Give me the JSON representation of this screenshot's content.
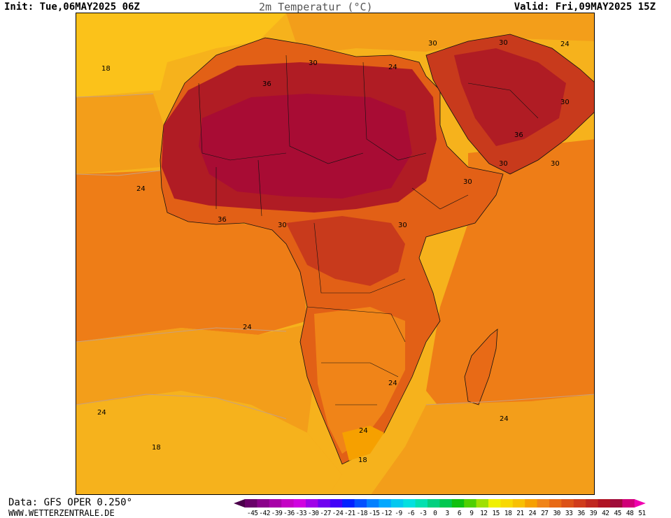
{
  "header": {
    "init": "Init: Tue,06MAY2025 06Z",
    "title": "2m Temperatur (°C)",
    "valid": "Valid: Fri,09MAY2025 15Z"
  },
  "footer": {
    "data_source": "Data: GFS OPER 0.250°",
    "website": "WWW.WETTERZENTRALE.DE"
  },
  "map": {
    "region": "Africa",
    "colors": {
      "ocean_cool": "#f6b21c",
      "ocean_18": "#fbc21a",
      "ocean_mid": "#f39e1a",
      "ocean_warm": "#ee7d17",
      "land_warm": "#e26016",
      "land_hot": "#c83a1c",
      "land_hotter": "#b01c24",
      "land_extreme": "#a80c34",
      "border_line": "#111111",
      "contour_line": "#c8a080"
    },
    "contour_labels": [
      {
        "text": "18",
        "id": "label-18-nw"
      },
      {
        "text": "36",
        "id": "label-36-sahara"
      },
      {
        "text": "30",
        "id": "label-30-mediterranean"
      },
      {
        "text": "24",
        "id": "label-24-libya"
      },
      {
        "text": "30",
        "id": "label-30-egypt"
      },
      {
        "text": "30",
        "id": "label-30-middle-east"
      },
      {
        "text": "24",
        "id": "label-24-ne-corner"
      },
      {
        "text": "30",
        "id": "label-30-arabia"
      },
      {
        "text": "36",
        "id": "label-36-arabia"
      },
      {
        "text": "30",
        "id": "label-30-horn"
      },
      {
        "text": "30",
        "id": "label-30-arabian-sea"
      },
      {
        "text": "30",
        "id": "label-30-ethiopia"
      },
      {
        "text": "24",
        "id": "label-24-atlantic-west"
      },
      {
        "text": "36",
        "id": "label-36-west-africa"
      },
      {
        "text": "30",
        "id": "label-30-gulf-guinea"
      },
      {
        "text": "30",
        "id": "label-30-central"
      },
      {
        "text": "24",
        "id": "label-24-south-atlantic"
      },
      {
        "text": "24",
        "id": "label-24-southern-africa"
      },
      {
        "text": "24",
        "id": "label-24-sw-atlantic"
      },
      {
        "text": "24",
        "id": "label-24-indian-ocean"
      },
      {
        "text": "18",
        "id": "label-18-south-atlantic"
      },
      {
        "text": "24",
        "id": "label-24-south-africa"
      },
      {
        "text": "18",
        "id": "label-18-cape"
      }
    ]
  },
  "legend": {
    "ticks": [
      "-45",
      "-42",
      "-39",
      "-36",
      "-33",
      "-30",
      "-27",
      "-24",
      "-21",
      "-18",
      "-15",
      "-12",
      "-9",
      "-6",
      "-3",
      "0",
      "3",
      "6",
      "9",
      "12",
      "15",
      "18",
      "21",
      "24",
      "27",
      "30",
      "33",
      "36",
      "39",
      "42",
      "45",
      "48",
      "51"
    ],
    "colors": [
      "#4b004b",
      "#6a006a",
      "#8a008a",
      "#a800a8",
      "#c400c4",
      "#d000e0",
      "#a000e8",
      "#7000f0",
      "#4000f8",
      "#0020ff",
      "#0050ff",
      "#0080ff",
      "#00a8ff",
      "#00c8f0",
      "#00e0e0",
      "#00e0b0",
      "#00d080",
      "#00c850",
      "#10c010",
      "#50d000",
      "#a0e000",
      "#f0f000",
      "#f8d800",
      "#f8c000",
      "#f6a000",
      "#f08418",
      "#e86a16",
      "#dc5218",
      "#d03c1c",
      "#c02820",
      "#b01424",
      "#a00c3a",
      "#d00078",
      "#f000b0"
    ]
  }
}
